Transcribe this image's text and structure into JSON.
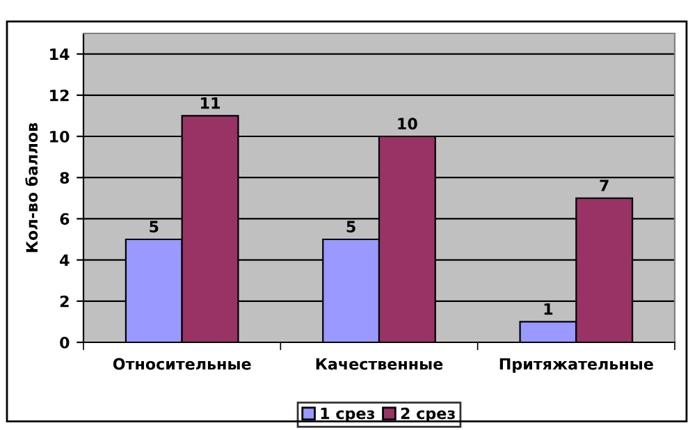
{
  "chart_data": {
    "type": "bar",
    "ylabel": "Кол-во баллов",
    "categories": [
      "Относительные",
      "Качественные",
      "Притяжательные"
    ],
    "series": [
      {
        "name": "1 срез",
        "color": "#9999ff",
        "values": [
          5,
          5,
          1
        ]
      },
      {
        "name": "2 срез",
        "color": "#993366",
        "values": [
          11,
          10,
          7
        ]
      }
    ],
    "ylim": [
      0,
      15
    ],
    "yticks": [
      0,
      2,
      4,
      6,
      8,
      10,
      12,
      14
    ],
    "grid": "y",
    "legend": "bottom",
    "data_labels": true
  }
}
